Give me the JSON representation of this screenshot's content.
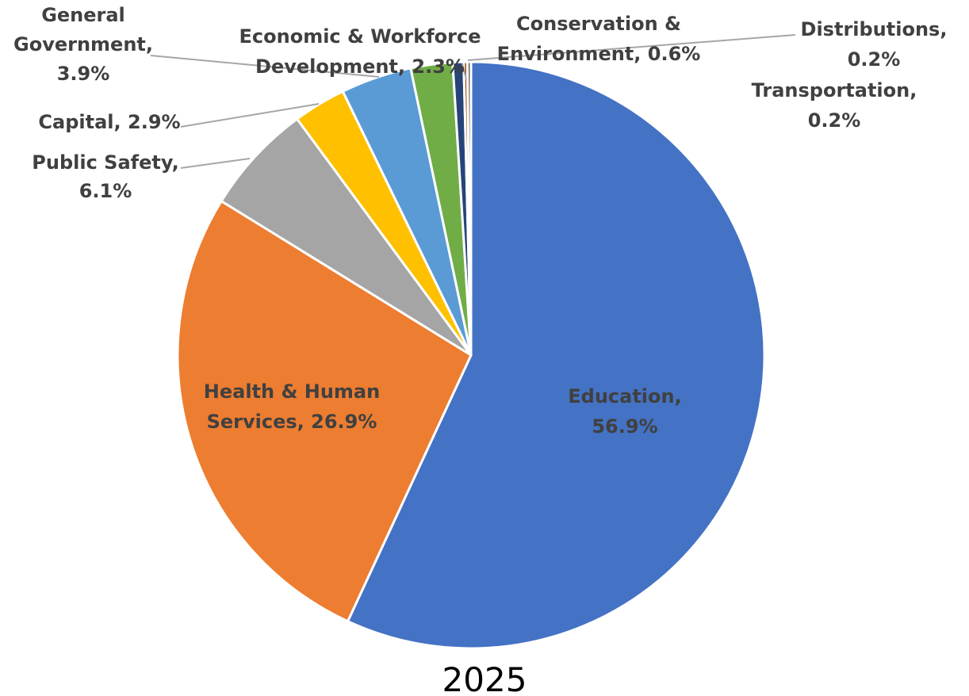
{
  "chart_data": {
    "type": "pie",
    "caption": "2025",
    "slices": [
      {
        "name": "Education",
        "value": 56.9,
        "label": [
          "Education,",
          "56.9%"
        ],
        "color": "#4472C4"
      },
      {
        "name": "Health & Human Services",
        "value": 26.9,
        "label": [
          "Health & Human",
          "Services, 26.9%"
        ],
        "color": "#ED7D31"
      },
      {
        "name": "Public Safety",
        "value": 6.1,
        "label": [
          "Public Safety,",
          "6.1%"
        ],
        "color": "#A5A5A5"
      },
      {
        "name": "Capital",
        "value": 2.9,
        "label": [
          "Capital, 2.9%"
        ],
        "color": "#FFC000"
      },
      {
        "name": "General Government",
        "value": 3.9,
        "label": [
          "General",
          "Government,",
          "3.9%"
        ],
        "color": "#5B9BD5"
      },
      {
        "name": "Economic & Workforce Development",
        "value": 2.3,
        "label": [
          "Economic & Workforce",
          "Development, 2.3%"
        ],
        "color": "#70AD47"
      },
      {
        "name": "Conservation & Environment",
        "value": 0.6,
        "label": [
          "Conservation &",
          "Environment, 0.6%"
        ],
        "color": "#264478"
      },
      {
        "name": "Distributions",
        "value": 0.2,
        "label": [
          "Distributions,",
          "0.2%"
        ],
        "color": "#9E480E"
      },
      {
        "name": "Transportation",
        "value": 0.2,
        "label": [
          "Transportation,",
          "0.2%"
        ],
        "color": "#636363"
      }
    ]
  }
}
